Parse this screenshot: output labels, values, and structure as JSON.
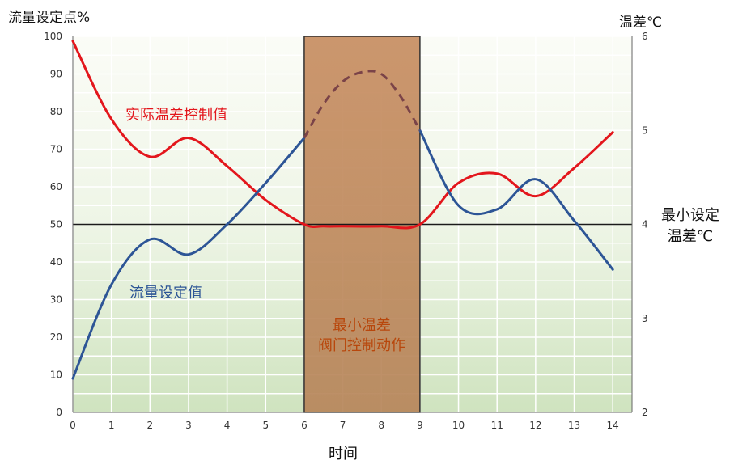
{
  "chart_data": {
    "type": "line",
    "ylabel_left": "流量设定点%",
    "ylabel_right": "温差℃",
    "xlabel": "时间",
    "x_ticks": [
      "0",
      "1",
      "2",
      "3",
      "4",
      "5",
      "6",
      "7",
      "8",
      "9",
      "10",
      "11",
      "12",
      "13",
      "14"
    ],
    "y_left_ticks": [
      "0",
      "10",
      "20",
      "30",
      "40",
      "50",
      "60",
      "70",
      "80",
      "90",
      "100"
    ],
    "y_right_ticks": [
      "2",
      "3",
      "4",
      "5",
      "6"
    ],
    "xlim": [
      0,
      14.5
    ],
    "ylim_left": [
      0,
      100
    ],
    "ylim_right": [
      2,
      6
    ],
    "grid": true,
    "series": [
      {
        "name": "实际温差控制值",
        "axis": "right",
        "color": "#e3161c",
        "x": [
          0,
          1,
          2,
          3,
          4,
          5,
          6,
          6.5,
          7,
          8,
          9,
          10,
          11,
          12,
          13,
          14
        ],
        "y": [
          5.95,
          5.12,
          4.72,
          4.92,
          4.62,
          4.26,
          4.0,
          3.98,
          3.98,
          3.98,
          4.0,
          4.44,
          4.54,
          4.3,
          4.6,
          4.98
        ]
      },
      {
        "name": "流量设定值",
        "axis": "left",
        "color": "#2d5596",
        "x": [
          0,
          1,
          2,
          3,
          4,
          5,
          6,
          9,
          10,
          11,
          12,
          13,
          14
        ],
        "y": [
          9,
          34,
          46,
          42,
          50,
          61,
          73,
          75,
          55,
          54,
          62,
          51,
          38
        ]
      },
      {
        "name": "",
        "axis": "left",
        "style": "dashed",
        "color": "#7a4348",
        "x": [
          6,
          6.5,
          7,
          7.5,
          8,
          8.5,
          9
        ],
        "y": [
          73,
          82,
          88,
          90.5,
          90,
          84,
          75
        ]
      }
    ],
    "reference_line": {
      "axis": "right",
      "value": 4,
      "label": "最小设定温差℃",
      "label_lines": [
        "最小设定",
        "温差℃"
      ]
    },
    "annotations": [
      {
        "text": "实际温差控制值",
        "color": "#e3161c"
      },
      {
        "text": "流量设定值",
        "color": "#2d5596"
      },
      {
        "text_lines": [
          "最小温差",
          "阀门控制动作"
        ],
        "color": "#b8470c",
        "x_range": [
          6,
          9
        ]
      }
    ],
    "shaded_region": {
      "x_start": 6,
      "x_end": 9,
      "color": "#c48a5e"
    }
  }
}
